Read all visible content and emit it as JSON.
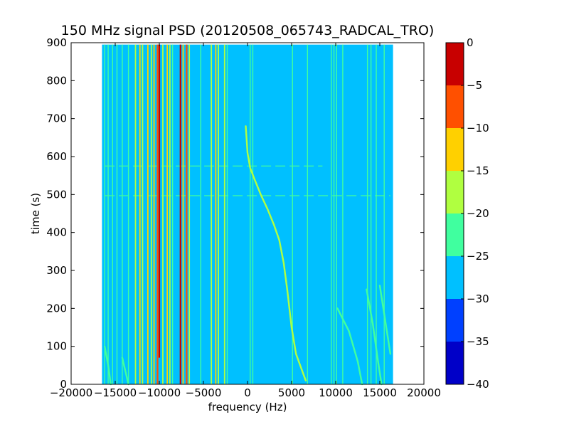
{
  "chart_data": {
    "type": "heatmap",
    "title": "150 MHz signal PSD (20120508_065743_RADCAL_TRO)",
    "xlabel": "frequency (Hz)",
    "ylabel": "time (s)",
    "xlim": [
      -20000,
      20000
    ],
    "ylim": [
      0,
      900
    ],
    "data_extent": {
      "x": [
        -16500,
        16500
      ],
      "y": [
        0,
        895
      ]
    },
    "xticks": [
      -20000,
      -15000,
      -10000,
      -5000,
      0,
      5000,
      10000,
      15000,
      20000
    ],
    "xtick_labels": [
      "−20000",
      "−15000",
      "−10000",
      "−5000",
      "0",
      "5000",
      "10000",
      "15000",
      "20000"
    ],
    "yticks": [
      0,
      100,
      200,
      300,
      400,
      500,
      600,
      700,
      800,
      900
    ],
    "ytick_labels": [
      "0",
      "100",
      "200",
      "300",
      "400",
      "500",
      "600",
      "700",
      "800",
      "900"
    ],
    "background_level": -27.5,
    "colorbar": {
      "ticks": [
        0,
        -5,
        -10,
        -15,
        -20,
        -25,
        -30,
        -35,
        -40
      ],
      "tick_labels": [
        "0",
        "−5",
        "−10",
        "−15",
        "−20",
        "−25",
        "−30",
        "−35",
        "−40"
      ],
      "bins": [
        {
          "from": -40,
          "to": -35,
          "color": "#0000c8"
        },
        {
          "from": -35,
          "to": -30,
          "color": "#0040ff"
        },
        {
          "from": -30,
          "to": -25,
          "color": "#00c0ff"
        },
        {
          "from": -25,
          "to": -20,
          "color": "#40ff9f"
        },
        {
          "from": -20,
          "to": -15,
          "color": "#b0ff40"
        },
        {
          "from": -15,
          "to": -10,
          "color": "#ffd000"
        },
        {
          "from": -10,
          "to": -5,
          "color": "#ff5000"
        },
        {
          "from": -5,
          "to": 0,
          "color": "#c80000"
        }
      ]
    },
    "vertical_lines": [
      {
        "x": -16200,
        "level": -22,
        "y0": 0,
        "y1": 895
      },
      {
        "x": -15800,
        "level": -22,
        "y0": 0,
        "y1": 895
      },
      {
        "x": -15300,
        "level": -22,
        "y0": 0,
        "y1": 895
      },
      {
        "x": -14800,
        "level": -22,
        "y0": 0,
        "y1": 895
      },
      {
        "x": -14200,
        "level": -22,
        "y0": 0,
        "y1": 895
      },
      {
        "x": -13500,
        "level": -22,
        "y0": 0,
        "y1": 895
      },
      {
        "x": -12700,
        "level": -18,
        "y0": 0,
        "y1": 895
      },
      {
        "x": -12200,
        "level": -12,
        "y0": 0,
        "y1": 895
      },
      {
        "x": -11900,
        "level": -18,
        "y0": 0,
        "y1": 895
      },
      {
        "x": -11300,
        "level": -12,
        "y0": 0,
        "y1": 895
      },
      {
        "x": -10900,
        "level": -18,
        "y0": 0,
        "y1": 895
      },
      {
        "x": -10600,
        "level": -12,
        "y0": 0,
        "y1": 895
      },
      {
        "x": -10200,
        "level": -8,
        "y0": 0,
        "y1": 895
      },
      {
        "x": -10000,
        "level": -3,
        "y0": 70,
        "y1": 895
      },
      {
        "x": -9600,
        "level": -18,
        "y0": 0,
        "y1": 895
      },
      {
        "x": -9100,
        "level": -12,
        "y0": 0,
        "y1": 895
      },
      {
        "x": -8800,
        "level": -18,
        "y0": 0,
        "y1": 895
      },
      {
        "x": -8500,
        "level": -22,
        "y0": 0,
        "y1": 895
      },
      {
        "x": -7600,
        "level": -3,
        "y0": 0,
        "y1": 895
      },
      {
        "x": -7300,
        "level": -12,
        "y0": 0,
        "y1": 895
      },
      {
        "x": -6900,
        "level": -8,
        "y0": 0,
        "y1": 895
      },
      {
        "x": -6600,
        "level": -18,
        "y0": 0,
        "y1": 895
      },
      {
        "x": -5300,
        "level": -22,
        "y0": 0,
        "y1": 895
      },
      {
        "x": -4100,
        "level": -18,
        "y0": 0,
        "y1": 895
      },
      {
        "x": -3600,
        "level": -12,
        "y0": 0,
        "y1": 895
      },
      {
        "x": -3300,
        "level": -18,
        "y0": 0,
        "y1": 895
      },
      {
        "x": -2600,
        "level": -18,
        "y0": 0,
        "y1": 895
      },
      {
        "x": -2300,
        "level": -22,
        "y0": 0,
        "y1": 895
      },
      {
        "x": 300,
        "level": -22,
        "y0": 0,
        "y1": 895
      },
      {
        "x": 600,
        "level": -22,
        "y0": 0,
        "y1": 895
      },
      {
        "x": 5100,
        "level": -22,
        "y0": 0,
        "y1": 895
      },
      {
        "x": 6800,
        "level": -22,
        "y0": 0,
        "y1": 895
      },
      {
        "x": 9500,
        "level": -22,
        "y0": 0,
        "y1": 895
      },
      {
        "x": 9800,
        "level": -22,
        "y0": 0,
        "y1": 895
      },
      {
        "x": 10100,
        "level": -22,
        "y0": 0,
        "y1": 895
      },
      {
        "x": 10800,
        "level": -22,
        "y0": 0,
        "y1": 895
      },
      {
        "x": 13600,
        "level": -22,
        "y0": 0,
        "y1": 895
      },
      {
        "x": 14000,
        "level": -22,
        "y0": 0,
        "y1": 895
      },
      {
        "x": 14600,
        "level": -22,
        "y0": 0,
        "y1": 895
      },
      {
        "x": 15500,
        "level": -22,
        "y0": 0,
        "y1": 895
      }
    ],
    "drift_tracks": [
      {
        "level": -18,
        "points": [
          [
            -200,
            680
          ],
          [
            0,
            610
          ],
          [
            300,
            570
          ],
          [
            800,
            540
          ],
          [
            1500,
            500
          ],
          [
            2300,
            460
          ],
          [
            3000,
            420
          ],
          [
            3600,
            380
          ],
          [
            4100,
            320
          ],
          [
            4500,
            250
          ],
          [
            5000,
            150
          ],
          [
            5500,
            80
          ],
          [
            6600,
            10
          ]
        ]
      },
      {
        "level": -22,
        "points": [
          [
            -16200,
            100
          ],
          [
            -15800,
            50
          ],
          [
            -15500,
            0
          ]
        ]
      },
      {
        "level": -22,
        "points": [
          [
            -14200,
            70
          ],
          [
            -13800,
            30
          ],
          [
            -13500,
            0
          ]
        ]
      },
      {
        "level": -22,
        "points": [
          [
            10200,
            200
          ],
          [
            11500,
            140
          ],
          [
            12500,
            60
          ],
          [
            13000,
            0
          ]
        ]
      },
      {
        "level": -22,
        "points": [
          [
            13500,
            250
          ],
          [
            14200,
            160
          ],
          [
            14800,
            60
          ],
          [
            15200,
            0
          ]
        ]
      },
      {
        "level": -22,
        "points": [
          [
            15000,
            260
          ],
          [
            15600,
            170
          ],
          [
            16200,
            80
          ]
        ]
      }
    ],
    "horizontal_streaks": [
      {
        "y": 497,
        "level": -22,
        "x0": -16200,
        "x1": 16200
      },
      {
        "y": 575,
        "level": -22,
        "x0": -16200,
        "x1": 8500
      }
    ]
  }
}
